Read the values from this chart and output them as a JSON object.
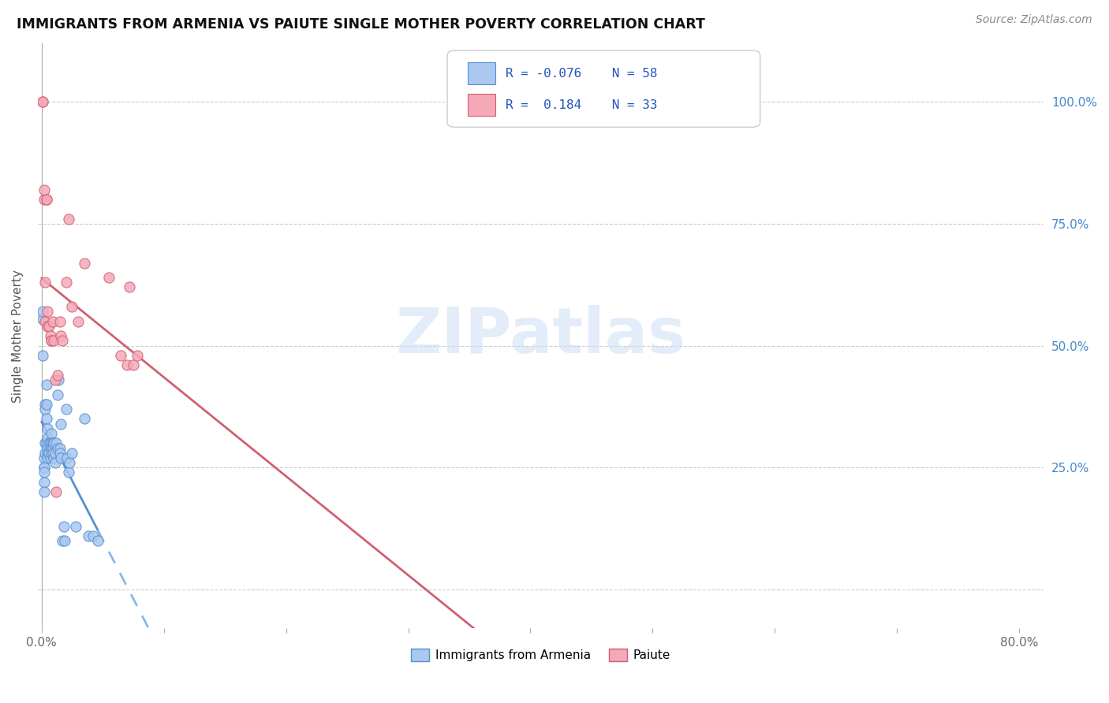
{
  "title": "IMMIGRANTS FROM ARMENIA VS PAIUTE SINGLE MOTHER POVERTY CORRELATION CHART",
  "source": "Source: ZipAtlas.com",
  "ylabel": "Single Mother Poverty",
  "xlim": [
    0.0,
    0.8
  ],
  "ylim": [
    -0.08,
    1.12
  ],
  "legend_label1": "Immigrants from Armenia",
  "legend_label2": "Paiute",
  "R1": "-0.076",
  "N1": "58",
  "R2": "0.184",
  "N2": "33",
  "color_armenia": "#aac8f0",
  "color_paiute": "#f5a8b8",
  "color_line_armenia": "#5590d0",
  "color_line_paiute": "#d06070",
  "color_line_armenia_dash": "#88b8e8",
  "watermark": "ZIPatlas",
  "armenia_x": [
    0.001,
    0.001,
    0.001,
    0.002,
    0.002,
    0.002,
    0.002,
    0.002,
    0.002,
    0.003,
    0.003,
    0.003,
    0.003,
    0.004,
    0.004,
    0.004,
    0.004,
    0.005,
    0.005,
    0.005,
    0.005,
    0.005,
    0.006,
    0.006,
    0.007,
    0.007,
    0.008,
    0.008,
    0.008,
    0.008,
    0.009,
    0.009,
    0.009,
    0.01,
    0.01,
    0.011,
    0.011,
    0.012,
    0.013,
    0.013,
    0.014,
    0.015,
    0.015,
    0.016,
    0.016,
    0.017,
    0.018,
    0.019,
    0.02,
    0.021,
    0.022,
    0.023,
    0.025,
    0.028,
    0.035,
    0.038,
    0.042,
    0.046
  ],
  "armenia_y": [
    0.555,
    0.57,
    0.48,
    0.27,
    0.25,
    0.25,
    0.24,
    0.22,
    0.2,
    0.38,
    0.37,
    0.3,
    0.28,
    0.42,
    0.38,
    0.35,
    0.3,
    0.33,
    0.31,
    0.29,
    0.28,
    0.27,
    0.3,
    0.28,
    0.3,
    0.27,
    0.32,
    0.3,
    0.29,
    0.28,
    0.3,
    0.29,
    0.28,
    0.3,
    0.27,
    0.28,
    0.26,
    0.3,
    0.4,
    0.29,
    0.43,
    0.29,
    0.28,
    0.34,
    0.27,
    0.1,
    0.13,
    0.1,
    0.37,
    0.27,
    0.24,
    0.26,
    0.28,
    0.13,
    0.35,
    0.11,
    0.11,
    0.1
  ],
  "paiute_x": [
    0.001,
    0.001,
    0.002,
    0.002,
    0.003,
    0.003,
    0.004,
    0.004,
    0.005,
    0.005,
    0.006,
    0.007,
    0.008,
    0.008,
    0.009,
    0.01,
    0.011,
    0.012,
    0.013,
    0.015,
    0.016,
    0.017,
    0.02,
    0.022,
    0.025,
    0.03,
    0.035,
    0.055,
    0.065,
    0.07,
    0.072,
    0.075,
    0.078
  ],
  "paiute_y": [
    1.0,
    1.0,
    0.8,
    0.82,
    0.63,
    0.55,
    0.8,
    0.8,
    0.57,
    0.54,
    0.54,
    0.52,
    0.51,
    0.51,
    0.55,
    0.51,
    0.43,
    0.2,
    0.44,
    0.55,
    0.52,
    0.51,
    0.63,
    0.76,
    0.58,
    0.55,
    0.67,
    0.64,
    0.48,
    0.46,
    0.62,
    0.46,
    0.48
  ]
}
